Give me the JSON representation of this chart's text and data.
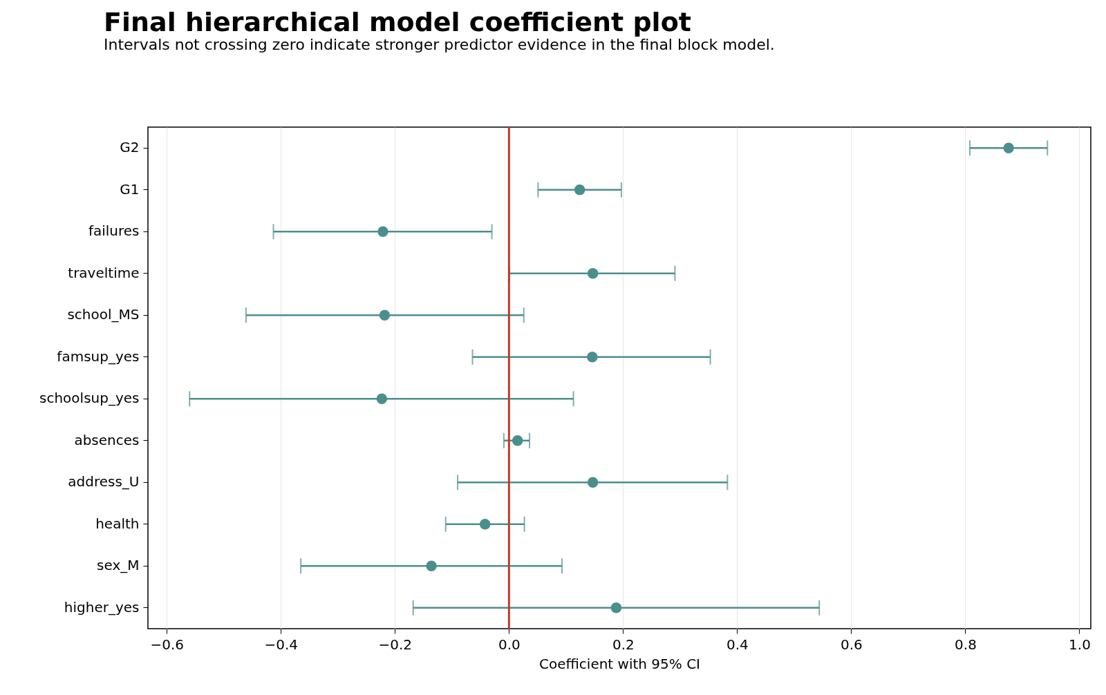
{
  "chart_data": {
    "type": "scatter",
    "orientation": "horizontal",
    "title": "Final hierarchical model coefficient plot",
    "subtitle": "Intervals not crossing zero indicate stronger predictor evidence in the final block model.",
    "xlabel": "Coefficient with 95% CI",
    "categories": [
      "G2",
      "G1",
      "failures",
      "traveltime",
      "school_MS",
      "famsup_yes",
      "schoolsup_yes",
      "absences",
      "address_U",
      "health",
      "sex_M",
      "higher_yes"
    ],
    "series": [
      {
        "color": "#4a8f8c",
        "values": [
          0.876,
          0.124,
          -0.221,
          0.147,
          -0.218,
          0.146,
          -0.223,
          0.015,
          0.147,
          -0.042,
          -0.136,
          0.188
        ],
        "errors": [
          [
            0.808,
            0.944
          ],
          [
            0.051,
            0.197
          ],
          [
            -0.413,
            -0.03
          ],
          [
            0.001,
            0.291
          ],
          [
            -0.461,
            0.026
          ],
          [
            -0.064,
            0.353
          ],
          [
            -0.56,
            0.113
          ],
          [
            -0.009,
            0.036
          ],
          [
            -0.09,
            0.383
          ],
          [
            -0.111,
            0.027
          ],
          [
            -0.365,
            0.093
          ],
          [
            -0.168,
            0.544
          ]
        ]
      }
    ],
    "xlim": [
      -0.633,
      1.02
    ],
    "xticks": [
      -0.6,
      -0.4,
      -0.2,
      {
        "value": 0,
        "label": "0.0"
      },
      0.2,
      0.4,
      0.6,
      0.8,
      {
        "value": 1,
        "label": "1.0"
      }
    ],
    "ref_lines": [
      {
        "axis": "x",
        "value": 0,
        "color": "#c0392b"
      }
    ],
    "grid": "x",
    "marker": "circle"
  }
}
